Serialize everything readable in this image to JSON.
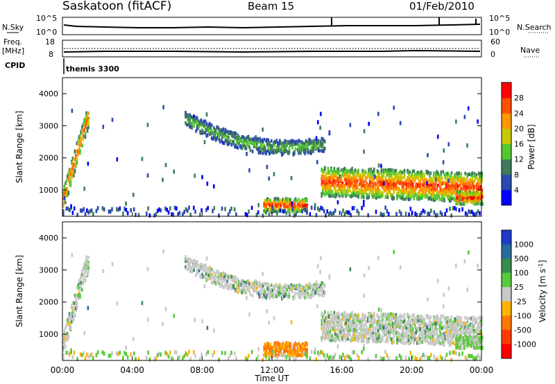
{
  "header": {
    "station": "Saskatoon (fitACF)",
    "beam": "Beam 15",
    "date": "01/Feb/2010"
  },
  "top_panels": {
    "nsky": {
      "left_label": "N.Sky",
      "left_ticks": [
        "10^5",
        "10^0"
      ],
      "right_label": "N.Search",
      "right_ticks": [
        "10^5",
        "10^0"
      ]
    },
    "freq": {
      "left_label_line1": "Freq.",
      "left_label_line2": "[MHz]",
      "left_ticks": [
        "18",
        "8"
      ],
      "right_label": "Nave",
      "right_ticks": [
        "60",
        "0"
      ]
    },
    "cpid": {
      "label": "CPID",
      "value": "themis 3300"
    }
  },
  "chart_data": [
    {
      "type": "heatmap",
      "name": "power",
      "ylabel": "Slant Range [km]",
      "yticks": [
        "1000",
        "2000",
        "3000",
        "4000"
      ],
      "ylim": [
        180,
        4500
      ],
      "colorbar_label": "Power [dB]",
      "colorbar_ticks": [
        "4",
        "8",
        "12",
        "16",
        "20",
        "24",
        "28"
      ],
      "colorbar_colors": [
        "#0000ff",
        "#2b4ab0",
        "#3f7a5a",
        "#52c832",
        "#c8c800",
        "#ff9600",
        "#ff5000",
        "#ff0000"
      ],
      "echo_regions": [
        {
          "t_start": 0.0,
          "t_end": 1.6,
          "range_km": [
            500,
            3500
          ],
          "power_db": 22
        },
        {
          "t_start": 7.0,
          "t_end": 15.0,
          "range_km": [
            2300,
            3400
          ],
          "power_db": 10
        },
        {
          "t_start": 11.5,
          "t_end": 14.0,
          "range_km": [
            300,
            800
          ],
          "power_db": 26
        },
        {
          "t_start": 14.8,
          "t_end": 24.0,
          "range_km": [
            700,
            1900
          ],
          "power_db": 22
        }
      ]
    },
    {
      "type": "heatmap",
      "name": "velocity",
      "ylabel": "Slant Range [km]",
      "yticks": [
        "1000",
        "2000",
        "3000",
        "4000"
      ],
      "ylim": [
        180,
        4500
      ],
      "colorbar_label": "Velocity [m s^-1]",
      "colorbar_ticks": [
        "1000",
        "500",
        "100",
        "25",
        "-25",
        "-100",
        "-500",
        "-1000"
      ],
      "colorbar_colors": [
        "#1e3cc8",
        "#2a6a9a",
        "#3c8c50",
        "#5ac83c",
        "#c8c8c8",
        "#ffb400",
        "#ff7800",
        "#ff3c00",
        "#ff0000"
      ],
      "xlabel": "Time UT",
      "xticks": [
        "00:00",
        "04:00",
        "08:00",
        "12:00",
        "16:00",
        "20:00",
        "00:00"
      ],
      "xlim_hours": [
        0,
        24
      ]
    }
  ]
}
